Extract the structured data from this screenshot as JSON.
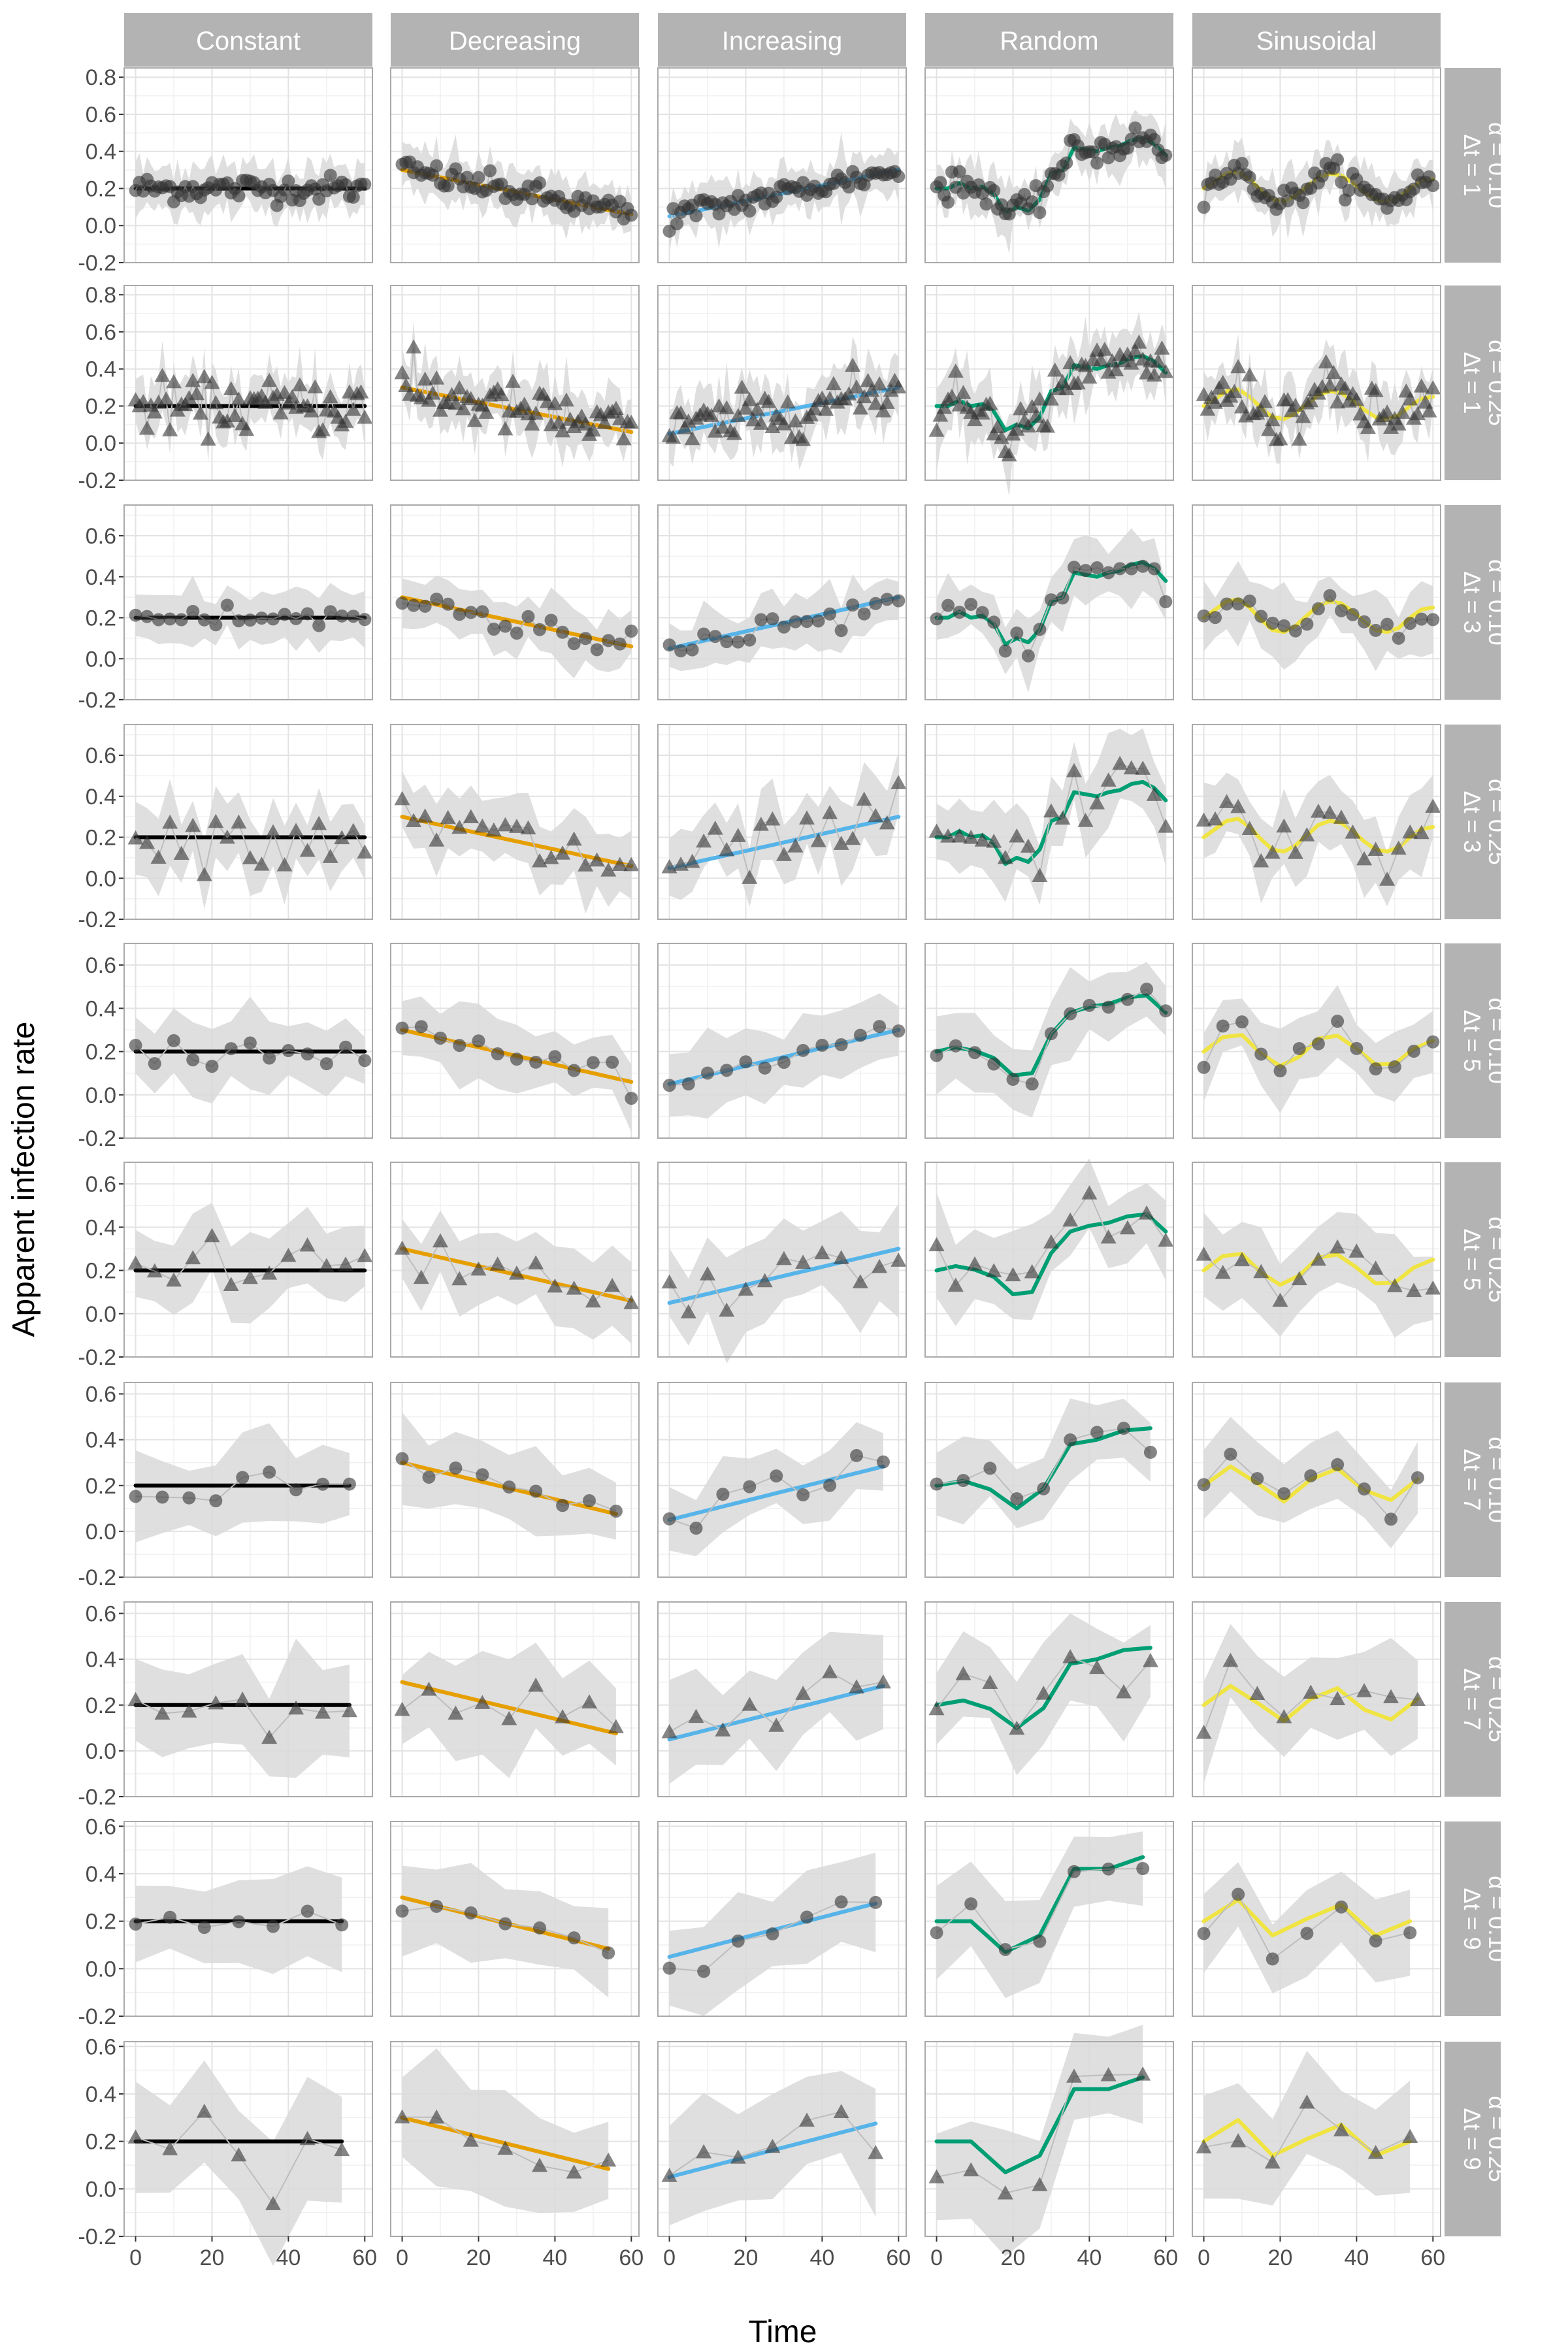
{
  "figure": {
    "ylabel": "Apparent infection rate",
    "xlabel": "Time"
  },
  "chart_data": {
    "type": "line",
    "layout": "facet_grid",
    "title": "",
    "xlabel": "Time",
    "ylabel": "Apparent infection rate",
    "x_ticks": [
      0,
      20,
      40,
      60
    ],
    "y_ticks": [
      -0.2,
      0.0,
      0.2,
      0.4,
      0.6,
      0.8
    ],
    "grid": true,
    "columns": [
      "Constant",
      "Decreasing",
      "Increasing",
      "Random",
      "Sinusoidal"
    ],
    "line_colors": {
      "Constant": "#000000",
      "Decreasing": "#E69F00",
      "Increasing": "#56B4E9",
      "Random": "#009E73",
      "Sinusoidal": "#F0E442"
    },
    "true_curves": {
      "Constant": {
        "x": [
          0,
          60
        ],
        "y": [
          0.2,
          0.2
        ]
      },
      "Decreasing": {
        "x": [
          0,
          60
        ],
        "y": [
          0.3,
          0.06
        ]
      },
      "Increasing": {
        "x": [
          0,
          60
        ],
        "y": [
          0.05,
          0.3
        ]
      },
      "Random": {
        "x": [
          0,
          3,
          6,
          9,
          12,
          15,
          18,
          21,
          24,
          27,
          30,
          33,
          36,
          39,
          42,
          45,
          48,
          51,
          54,
          57,
          60
        ],
        "y": [
          0.2,
          0.2,
          0.23,
          0.2,
          0.21,
          0.17,
          0.07,
          0.1,
          0.08,
          0.14,
          0.28,
          0.3,
          0.42,
          0.41,
          0.4,
          0.42,
          0.43,
          0.46,
          0.47,
          0.44,
          0.38
        ]
      },
      "Sinusoidal": {
        "x": [
          0,
          3,
          6,
          9,
          12,
          15,
          18,
          21,
          24,
          27,
          30,
          33,
          36,
          39,
          42,
          45,
          48,
          51,
          54,
          57,
          60
        ],
        "y": [
          0.2,
          0.24,
          0.28,
          0.29,
          0.25,
          0.19,
          0.14,
          0.13,
          0.16,
          0.21,
          0.26,
          0.28,
          0.27,
          0.23,
          0.18,
          0.14,
          0.13,
          0.15,
          0.2,
          0.24,
          0.25
        ]
      }
    },
    "rows": [
      {
        "dt_label": "Δt = 1",
        "alpha_label": "α = 0.10",
        "dt": 1,
        "alpha": 0.1,
        "marker": "circle",
        "ylim": [
          -0.2,
          0.85
        ],
        "yticks": [
          -0.2,
          0.0,
          0.2,
          0.4,
          0.6,
          0.8
        ]
      },
      {
        "dt_label": "Δt = 1",
        "alpha_label": "α = 0.25",
        "dt": 1,
        "alpha": 0.25,
        "marker": "triangle",
        "ylim": [
          -0.2,
          0.85
        ],
        "yticks": [
          -0.2,
          0.0,
          0.2,
          0.4,
          0.6,
          0.8
        ]
      },
      {
        "dt_label": "Δt = 3",
        "alpha_label": "α = 0.10",
        "dt": 3,
        "alpha": 0.1,
        "marker": "circle",
        "ylim": [
          -0.2,
          0.75
        ],
        "yticks": [
          -0.2,
          0.0,
          0.2,
          0.4,
          0.6
        ]
      },
      {
        "dt_label": "Δt = 3",
        "alpha_label": "α = 0.25",
        "dt": 3,
        "alpha": 0.25,
        "marker": "triangle",
        "ylim": [
          -0.2,
          0.75
        ],
        "yticks": [
          -0.2,
          0.0,
          0.2,
          0.4,
          0.6
        ]
      },
      {
        "dt_label": "Δt = 5",
        "alpha_label": "α = 0.10",
        "dt": 5,
        "alpha": 0.1,
        "marker": "circle",
        "ylim": [
          -0.2,
          0.7
        ],
        "yticks": [
          -0.2,
          0.0,
          0.2,
          0.4,
          0.6
        ]
      },
      {
        "dt_label": "Δt = 5",
        "alpha_label": "α = 0.25",
        "dt": 5,
        "alpha": 0.25,
        "marker": "triangle",
        "ylim": [
          -0.2,
          0.7
        ],
        "yticks": [
          -0.2,
          0.0,
          0.2,
          0.4,
          0.6
        ]
      },
      {
        "dt_label": "Δt = 7",
        "alpha_label": "α = 0.10",
        "dt": 7,
        "alpha": 0.1,
        "marker": "circle",
        "ylim": [
          -0.2,
          0.65
        ],
        "yticks": [
          -0.2,
          0.0,
          0.2,
          0.4,
          0.6
        ]
      },
      {
        "dt_label": "Δt = 7",
        "alpha_label": "α = 0.25",
        "dt": 7,
        "alpha": 0.25,
        "marker": "triangle",
        "ylim": [
          -0.2,
          0.65
        ],
        "yticks": [
          -0.2,
          0.0,
          0.2,
          0.4,
          0.6
        ]
      },
      {
        "dt_label": "Δt = 9",
        "alpha_label": "α = 0.10",
        "dt": 9,
        "alpha": 0.1,
        "marker": "circle",
        "ylim": [
          -0.2,
          0.62
        ],
        "yticks": [
          -0.2,
          0.0,
          0.2,
          0.4,
          0.6
        ]
      },
      {
        "dt_label": "Δt = 9",
        "alpha_label": "α = 0.25",
        "dt": 9,
        "alpha": 0.25,
        "marker": "triangle",
        "ylim": [
          -0.2,
          0.62
        ],
        "yticks": [
          -0.2,
          0.0,
          0.2,
          0.4,
          0.6
        ]
      }
    ],
    "band_color": "#D9D9D9",
    "point_color": "#333333",
    "panel_border": "#AAAAAA",
    "strip_color": "#B3B3B3"
  }
}
